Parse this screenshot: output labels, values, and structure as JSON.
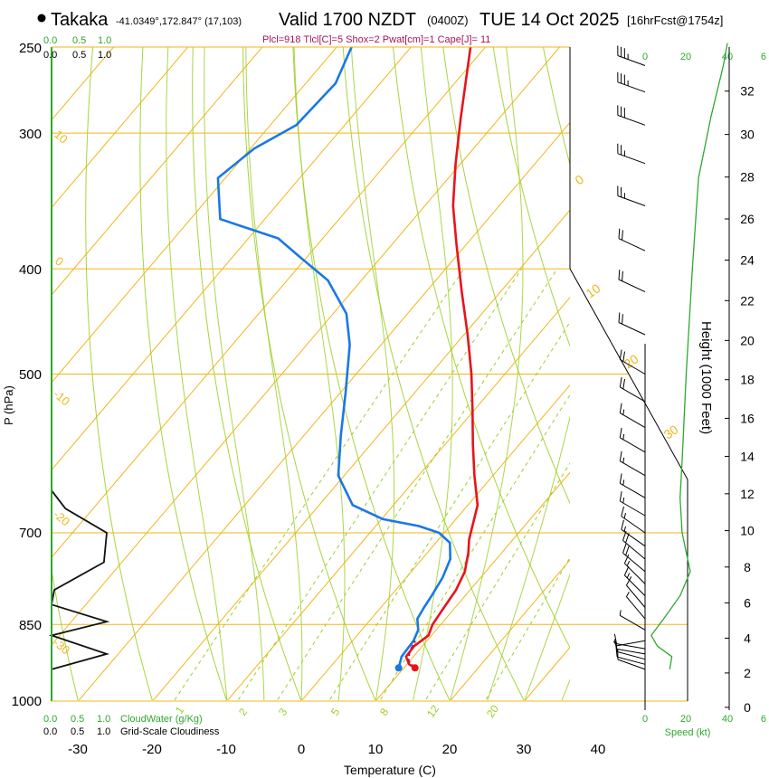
{
  "header": {
    "station": "Takaka",
    "coords": "-41.0349°,172.847° (17,103)",
    "valid": "Valid 1700 NZDT",
    "utc": "(0400Z)",
    "date": "TUE 14 Oct 2025",
    "forecast": "[16hrFcst@1754z]",
    "indices": "Plcl=918 Tlcl[C]=5 Shox=2 Pwat[cm]=1 Cape[J]= 11"
  },
  "colors": {
    "temperature": "#e8141a",
    "dewpoint": "#1a78e6",
    "isotherm": "#f2b519",
    "dry_adiabat": "#9ccf2a",
    "moist_adiabat": "#9ccf2a",
    "mixing_ratio": "#9ccf2a",
    "cloud": "#111111",
    "speed": "#2ea82e",
    "index_text": "#a8145a",
    "green_text": "#2ea82e"
  },
  "chart_data": {
    "type": "line",
    "title": "Skew-T log-P sounding",
    "xlabel": "Temperature (C)",
    "ylabel": "P (hPa)",
    "right_ylabel": "Height (1000 Feet)",
    "xlim": [
      -34,
      50
    ],
    "ylim_hpa": [
      1000,
      250
    ],
    "x_ticks": [
      -30,
      -20,
      -10,
      0,
      10,
      20,
      30,
      40
    ],
    "x_tick_labels": [
      "-30",
      "-20",
      "-10",
      "0",
      "10",
      "20",
      "30",
      "40"
    ],
    "pressure_levels": [
      250,
      300,
      400,
      500,
      700,
      850,
      1000
    ],
    "pressure_labels": [
      "250",
      "300",
      "400",
      "500",
      "700",
      "850",
      "1000"
    ],
    "height_ticks_kft": [
      0,
      2,
      4,
      6,
      8,
      10,
      12,
      14,
      16,
      18,
      20,
      22,
      24,
      26,
      28,
      30,
      32
    ],
    "height_labels": [
      "0",
      "2",
      "4",
      "6",
      "8",
      "10",
      "12",
      "14",
      "16",
      "18",
      "20",
      "22",
      "24",
      "26",
      "28",
      "30",
      "32"
    ],
    "temperature_profile": [
      {
        "p": 932,
        "t": 11.5
      },
      {
        "p": 925,
        "t": 10.3
      },
      {
        "p": 910,
        "t": 9.0
      },
      {
        "p": 890,
        "t": 8.9
      },
      {
        "p": 870,
        "t": 9.6
      },
      {
        "p": 850,
        "t": 8.9
      },
      {
        "p": 820,
        "t": 8.5
      },
      {
        "p": 790,
        "t": 8.1
      },
      {
        "p": 760,
        "t": 7.2
      },
      {
        "p": 730,
        "t": 5.5
      },
      {
        "p": 710,
        "t": 4.1
      },
      {
        "p": 690,
        "t": 3.0
      },
      {
        "p": 660,
        "t": 1.3
      },
      {
        "p": 620,
        "t": -2.5
      },
      {
        "p": 580,
        "t": -6.3
      },
      {
        "p": 540,
        "t": -10.2
      },
      {
        "p": 500,
        "t": -14.5
      },
      {
        "p": 460,
        "t": -19.5
      },
      {
        "p": 420,
        "t": -25.2
      },
      {
        "p": 380,
        "t": -31.3
      },
      {
        "p": 350,
        "t": -36.2
      },
      {
        "p": 320,
        "t": -40.7
      },
      {
        "p": 290,
        "t": -45.3
      },
      {
        "p": 250,
        "t": -52.0
      }
    ],
    "dewpoint_profile": [
      {
        "p": 932,
        "t": 9.3
      },
      {
        "p": 910,
        "t": 8.4
      },
      {
        "p": 880,
        "t": 8.2
      },
      {
        "p": 860,
        "t": 7.6
      },
      {
        "p": 840,
        "t": 6.2
      },
      {
        "p": 820,
        "t": 5.8
      },
      {
        "p": 800,
        "t": 5.5
      },
      {
        "p": 770,
        "t": 4.9
      },
      {
        "p": 740,
        "t": 3.8
      },
      {
        "p": 715,
        "t": 1.9
      },
      {
        "p": 700,
        "t": -0.7
      },
      {
        "p": 690,
        "t": -4.2
      },
      {
        "p": 680,
        "t": -9.8
      },
      {
        "p": 660,
        "t": -15.5
      },
      {
        "p": 620,
        "t": -20.8
      },
      {
        "p": 570,
        "t": -25.0
      },
      {
        "p": 520,
        "t": -29.3
      },
      {
        "p": 470,
        "t": -34.2
      },
      {
        "p": 440,
        "t": -38.2
      },
      {
        "p": 410,
        "t": -44.5
      },
      {
        "p": 390,
        "t": -51.0
      },
      {
        "p": 375,
        "t": -56.0
      },
      {
        "p": 360,
        "t": -66.0
      },
      {
        "p": 330,
        "t": -71.0
      },
      {
        "p": 310,
        "t": -69.5
      },
      {
        "p": 295,
        "t": -66.5
      },
      {
        "p": 270,
        "t": -66.0
      },
      {
        "p": 250,
        "t": -68.0
      }
    ],
    "parcel_profile": [
      {
        "p": 932,
        "t": 11.5
      },
      {
        "p": 918,
        "t": 9.8
      },
      {
        "p": 900,
        "t": 8.9
      },
      {
        "p": 880,
        "t": 8.4
      }
    ],
    "surface_temp": {
      "p": 932,
      "t": 11.5
    },
    "surface_dewpoint": {
      "p": 932,
      "t": 9.3
    },
    "isotherm_labels": [
      "0",
      "10",
      "20",
      "30",
      "10",
      "0",
      "-10",
      "-20",
      "-30"
    ],
    "mixing_ratio_labels": [
      "1",
      "2",
      "3",
      "5",
      "8",
      "12",
      "20"
    ],
    "cloud_axis": {
      "top_label_cw": [
        "0.0",
        "0.5",
        "1.0"
      ],
      "top_label_gs": [
        "0.0",
        "0.5",
        "1.0"
      ],
      "bottom_label_cw": [
        "0.0",
        "0.5",
        "1.0"
      ],
      "bottom_label_gs": [
        "0.0",
        "0.5",
        "1.0"
      ],
      "cloudwater_label": "CloudWater (g/Kg)",
      "cloudiness_label": "Grid-Scale Cloudiness",
      "cloudiness_profile": [
        {
          "p": 640,
          "v": 0.0
        },
        {
          "p": 665,
          "v": 0.25
        },
        {
          "p": 700,
          "v": 1.0
        },
        {
          "p": 745,
          "v": 0.95
        },
        {
          "p": 790,
          "v": 0.05
        },
        {
          "p": 815,
          "v": 0.0
        },
        {
          "p": 845,
          "v": 1.0
        },
        {
          "p": 870,
          "v": 0.0
        },
        {
          "p": 905,
          "v": 1.0
        },
        {
          "p": 935,
          "v": 0.0
        }
      ]
    },
    "wind": {
      "speed_label": "Speed (kt)",
      "speed_ticks": [
        "0",
        "20",
        "40",
        "6"
      ],
      "speed_profile_kt": [
        {
          "p": 935,
          "v": 12
        },
        {
          "p": 910,
          "v": 13
        },
        {
          "p": 890,
          "v": 6
        },
        {
          "p": 870,
          "v": 3
        },
        {
          "p": 840,
          "v": 9
        },
        {
          "p": 800,
          "v": 17
        },
        {
          "p": 760,
          "v": 22
        },
        {
          "p": 700,
          "v": 18
        },
        {
          "p": 650,
          "v": 17
        },
        {
          "p": 600,
          "v": 18
        },
        {
          "p": 500,
          "v": 20
        },
        {
          "p": 400,
          "v": 23
        },
        {
          "p": 330,
          "v": 26
        },
        {
          "p": 290,
          "v": 32
        },
        {
          "p": 260,
          "v": 38
        },
        {
          "p": 248,
          "v": 40
        }
      ],
      "barb_levels": [
        {
          "p": 935,
          "dir": 290,
          "spd": 12
        },
        {
          "p": 925,
          "dir": 285,
          "spd": 12
        },
        {
          "p": 915,
          "dir": 285,
          "spd": 12
        },
        {
          "p": 905,
          "dir": 280,
          "spd": 11
        },
        {
          "p": 895,
          "dir": 280,
          "spd": 10
        },
        {
          "p": 880,
          "dir": 260,
          "spd": 6
        },
        {
          "p": 860,
          "dir": 300,
          "spd": 5
        },
        {
          "p": 840,
          "dir": 320,
          "spd": 8
        },
        {
          "p": 820,
          "dir": 320,
          "spd": 12
        },
        {
          "p": 800,
          "dir": 315,
          "spd": 16
        },
        {
          "p": 780,
          "dir": 315,
          "spd": 18
        },
        {
          "p": 760,
          "dir": 310,
          "spd": 20
        },
        {
          "p": 740,
          "dir": 310,
          "spd": 20
        },
        {
          "p": 720,
          "dir": 305,
          "spd": 19
        },
        {
          "p": 700,
          "dir": 305,
          "spd": 18
        },
        {
          "p": 675,
          "dir": 300,
          "spd": 17
        },
        {
          "p": 650,
          "dir": 300,
          "spd": 17
        },
        {
          "p": 620,
          "dir": 300,
          "spd": 18
        },
        {
          "p": 590,
          "dir": 300,
          "spd": 18
        },
        {
          "p": 560,
          "dir": 300,
          "spd": 19
        },
        {
          "p": 530,
          "dir": 300,
          "spd": 20
        },
        {
          "p": 500,
          "dir": 300,
          "spd": 20
        },
        {
          "p": 460,
          "dir": 295,
          "spd": 21
        },
        {
          "p": 420,
          "dir": 295,
          "spd": 23
        },
        {
          "p": 385,
          "dir": 295,
          "spd": 24
        },
        {
          "p": 350,
          "dir": 290,
          "spd": 25
        },
        {
          "p": 320,
          "dir": 290,
          "spd": 27
        },
        {
          "p": 295,
          "dir": 290,
          "spd": 30
        },
        {
          "p": 275,
          "dir": 290,
          "spd": 35
        },
        {
          "p": 260,
          "dir": 290,
          "spd": 38
        }
      ]
    }
  }
}
